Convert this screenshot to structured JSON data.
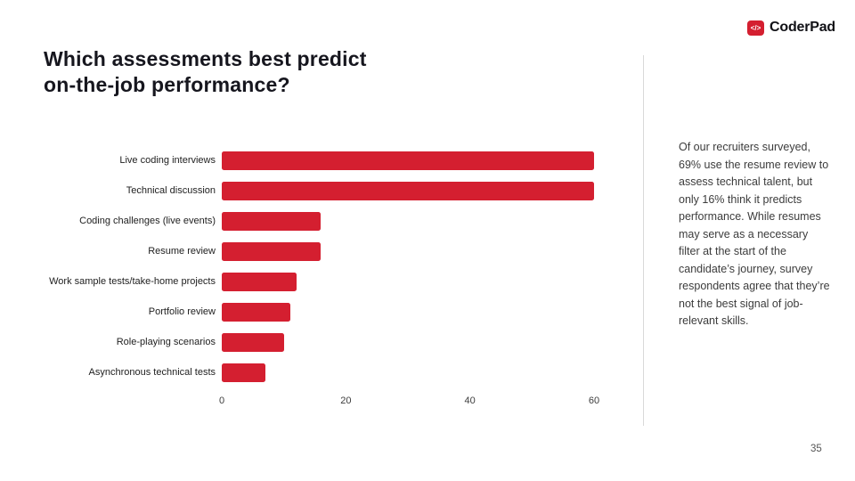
{
  "page": {
    "title_line1": "Which assessments best predict",
    "title_line2": "on-the-job performance?",
    "page_number": "35"
  },
  "logo": {
    "brand_name": "CoderPad",
    "icon_glyph": "</>",
    "brand_color": "#d41f30"
  },
  "side_note": {
    "text": "Of our recruiters surveyed, 69% use the resume review to assess technical talent, but only 16% think it predicts performance. While resumes may serve as a necessary filter at the start of the candidate’s journey, survey respondents agree that they’re not the best signal of job-relevant skills."
  },
  "chart_data": {
    "type": "bar",
    "orientation": "horizontal",
    "title": "Which assessments best predict on-the-job performance?",
    "categories": [
      "Live coding interviews",
      "Technical discussion",
      "Coding challenges (live events)",
      "Resume review",
      "Work sample tests/take-home projects",
      "Portfolio review",
      "Role-playing scenarios",
      "Asynchronous technical tests"
    ],
    "values": [
      60,
      60,
      16,
      16,
      12,
      11,
      10,
      7
    ],
    "xlabel": "",
    "ylabel": "",
    "xlim": [
      0,
      60
    ],
    "x_ticks": [
      0,
      20,
      40,
      60
    ],
    "bar_color": "#d41f30",
    "grid": false,
    "legend": false
  }
}
